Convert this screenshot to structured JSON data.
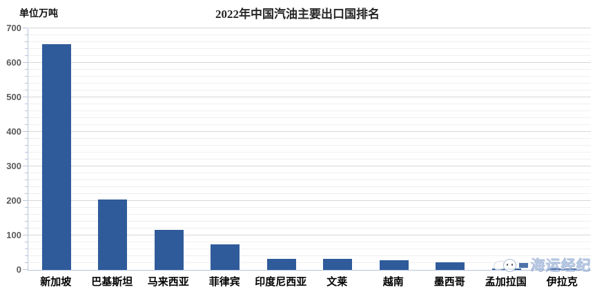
{
  "header": {
    "unit_label": "单位万吨"
  },
  "watermark": {
    "text": "海运经纪",
    "icon": "whale-mascot-icon"
  },
  "chart_data": {
    "type": "bar",
    "title": "2022年中国汽油主要出口国排名",
    "categories": [
      "新加坡",
      "巴基斯坦",
      "马来西亚",
      "菲律宾",
      "印度尼西亚",
      "文莱",
      "越南",
      "墨西哥",
      "孟加拉国",
      "伊拉克"
    ],
    "values": [
      655,
      205,
      116,
      74,
      32,
      32,
      29,
      23,
      5,
      4
    ],
    "xlabel": "",
    "ylabel": "单位万吨",
    "ylim": [
      0,
      700
    ],
    "y_major_step": 100,
    "y_minor_step": 20,
    "grid": true,
    "legend": "none",
    "colors": {
      "bar": "#2f5b9b",
      "axis": "#b7c3d9",
      "major_grid": "#d6d6d6",
      "minor_grid": "#efefef",
      "tick_label": "#595959",
      "category_label": "#000000",
      "title": "#262626"
    }
  }
}
